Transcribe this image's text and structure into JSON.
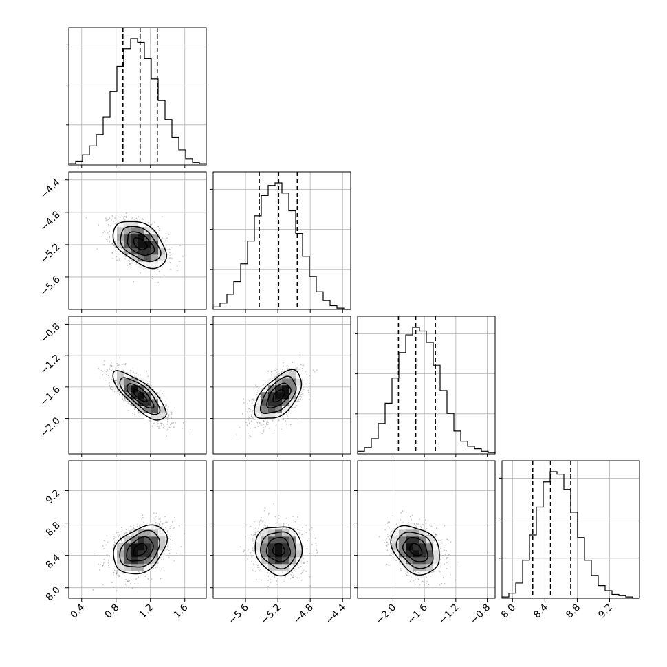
{
  "chart_data": {
    "type": "corner",
    "parameters": [
      {
        "range": [
          0.25,
          1.85
        ],
        "ticks": [
          0.4,
          0.8,
          1.2,
          1.6
        ],
        "tick_labels": [
          "0.4",
          "0.8",
          "1.2",
          "1.6"
        ],
        "quantiles": [
          0.88,
          1.08,
          1.28
        ],
        "mean": 1.08,
        "sd": 0.155
      },
      {
        "range": [
          -6.0,
          -4.3
        ],
        "ticks": [
          -5.6,
          -5.2,
          -4.8,
          -4.4
        ],
        "tick_labels": [
          "−5.6",
          "−5.2",
          "−4.8",
          "−4.4"
        ],
        "quantiles": [
          -5.43,
          -5.19,
          -4.96
        ],
        "mean": -5.19,
        "sd": 0.145
      },
      {
        "range": [
          -2.45,
          -0.7
        ],
        "ticks": [
          -2.0,
          -1.6,
          -1.2,
          -0.8
        ],
        "tick_labels": [
          "−2.0",
          "−1.6",
          "−1.2",
          "−0.8"
        ],
        "quantiles": [
          -1.93,
          -1.71,
          -1.46
        ],
        "mean": -1.71,
        "sd": 0.155
      },
      {
        "range": [
          7.87,
          9.57
        ],
        "ticks": [
          8.0,
          8.4,
          8.8,
          9.2
        ],
        "tick_labels": [
          "8.0",
          "8.4",
          "8.8",
          "9.2"
        ],
        "quantiles": [
          8.25,
          8.47,
          8.72
        ],
        "mean": 8.47,
        "sd": 0.15
      }
    ],
    "histograms": [
      [
        0.01,
        0.03,
        0.08,
        0.15,
        0.24,
        0.38,
        0.58,
        0.78,
        0.92,
        1.0,
        0.97,
        0.84,
        0.68,
        0.51,
        0.36,
        0.22,
        0.12,
        0.05,
        0.02,
        0.01
      ],
      [
        0.02,
        0.05,
        0.12,
        0.22,
        0.36,
        0.54,
        0.74,
        0.9,
        0.98,
        1.0,
        0.92,
        0.78,
        0.6,
        0.42,
        0.26,
        0.14,
        0.07,
        0.03,
        0.01,
        0.0
      ],
      [
        0.02,
        0.05,
        0.12,
        0.24,
        0.4,
        0.6,
        0.8,
        0.94,
        1.0,
        0.97,
        0.88,
        0.7,
        0.5,
        0.32,
        0.18,
        0.1,
        0.06,
        0.04,
        0.02,
        0.01
      ],
      [
        0.01,
        0.04,
        0.12,
        0.3,
        0.5,
        0.72,
        0.92,
        1.0,
        0.98,
        0.86,
        0.68,
        0.48,
        0.3,
        0.18,
        0.1,
        0.06,
        0.03,
        0.02,
        0.01,
        0.0
      ]
    ],
    "correlations": {
      "1-0": -0.45,
      "2-0": -0.78,
      "2-1": 0.55,
      "3-0": 0.35,
      "3-1": -0.05,
      "3-2": -0.3
    },
    "contour_levels_sigma": [
      0.5,
      1.0,
      1.5,
      2.0
    ],
    "grid": true
  }
}
